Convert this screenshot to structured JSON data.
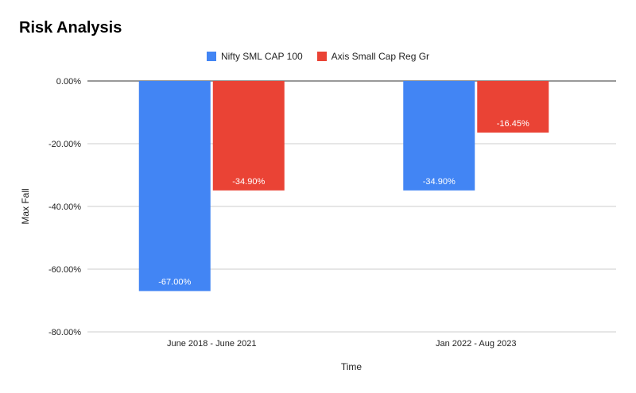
{
  "chart_data": {
    "type": "bar",
    "title": "Risk Analysis",
    "xlabel": "Time",
    "ylabel": "Max Fall",
    "categories": [
      "June 2018 - June 2021",
      "Jan 2022 - Aug 2023"
    ],
    "series": [
      {
        "name": "Nifty SML CAP 100",
        "color": "#4285f4",
        "values": [
          -67.0,
          -34.9
        ],
        "labels": [
          "-67.00%",
          "-34.90%"
        ]
      },
      {
        "name": "Axis Small Cap Reg Gr",
        "color": "#ea4335",
        "values": [
          -34.9,
          -16.45
        ],
        "labels": [
          "-34.90%",
          "-16.45%"
        ]
      }
    ],
    "ylim": [
      -80,
      0
    ],
    "yticks": [
      0,
      -20,
      -40,
      -60,
      -80
    ],
    "ytick_labels": [
      "0.00%",
      "-20.00%",
      "-40.00%",
      "-60.00%",
      "-80.00%"
    ],
    "grid": true,
    "legend_position": "top-center"
  }
}
